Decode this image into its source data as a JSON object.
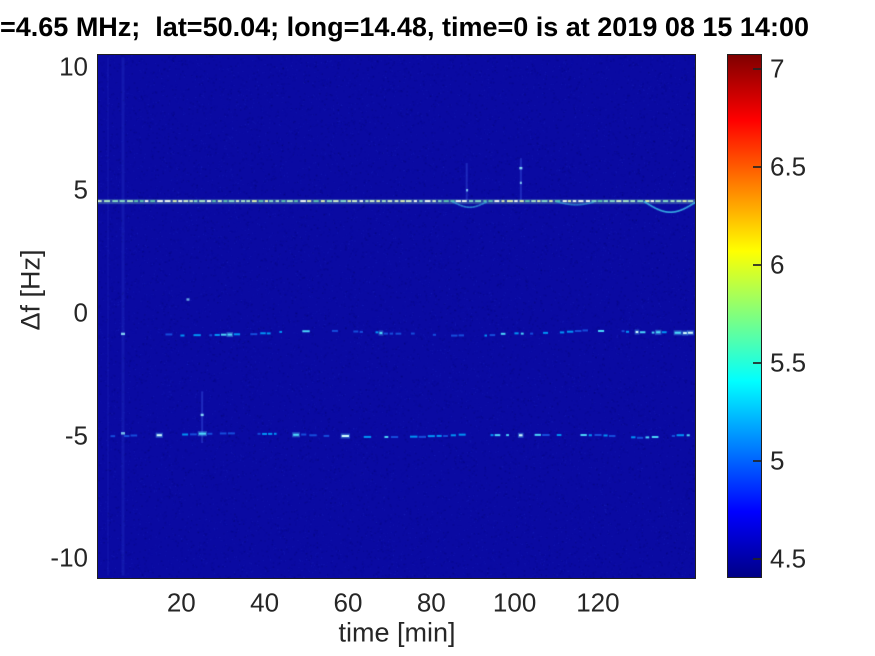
{
  "title": "=4.65 MHz;  lat=50.04; long=14.48, time=0 is at 2019 08 15 14:00",
  "chart_data": {
    "type": "heatmap",
    "subtype": "doppler-spectrogram",
    "title": "=4.65 MHz;  lat=50.04; long=14.48, time=0 is at 2019 08 15 14:00",
    "xlabel": "time [min]",
    "ylabel": "Δf [Hz]",
    "xlim": [
      0,
      143.3
    ],
    "ylim": [
      -10.8,
      10.5
    ],
    "xticks": [
      20,
      40,
      60,
      80,
      100,
      120
    ],
    "yticks": [
      10,
      5,
      0,
      -5,
      -10
    ],
    "grid": false,
    "background_value": 4.45,
    "background_color": "#0a0aa2",
    "colorbar": {
      "position": "right",
      "ticks": [
        7,
        6.5,
        6,
        5.5,
        5,
        4.5
      ],
      "clim": [
        4.41,
        7.07
      ],
      "colormap": "jet",
      "gradient_stops": [
        "#7f0000 0%",
        "#ff0000 12.5%",
        "#ffff00 37.5%",
        "#00ffff 62.5%",
        "#0000ff 87.5%",
        "#000086 100%"
      ]
    },
    "spectral_traces": [
      {
        "name": "carrier-line",
        "freq_hz": 4.55,
        "t_range_min": [
          0,
          143.3
        ],
        "intensity_range": [
          5.9,
          7.0
        ],
        "style": "bright-dashed-continuous",
        "dips": [
          {
            "t0": 85,
            "t1": 93,
            "df": -0.22,
            "alpha": 0.55
          },
          {
            "t0": 110,
            "t1": 119,
            "df": -0.12,
            "alpha": 0.45
          },
          {
            "t0": 131,
            "t1": 143.3,
            "df": -0.42,
            "alpha": 0.85
          }
        ]
      },
      {
        "name": "doppler-trace-mid",
        "freq_hz": -0.82,
        "t_range_min": [
          10,
          143.3
        ],
        "intensity_range": [
          4.8,
          5.8
        ],
        "style": "intermittent-scatter",
        "wander_hz": 0.25
      },
      {
        "name": "doppler-trace-low",
        "freq_hz": -4.95,
        "t_range_min": [
          3,
          143.3
        ],
        "intensity_range": [
          4.8,
          5.8
        ],
        "style": "intermittent-scatter",
        "wander_hz": 0.2
      }
    ],
    "vertical_streaks": [
      {
        "t": 2.4,
        "f0": 10.4,
        "f1": -10.7,
        "alpha": 0.07,
        "w": 2
      },
      {
        "t": 6.0,
        "f0": 10.4,
        "f1": -10.7,
        "alpha": 0.13,
        "w": 3
      },
      {
        "t": 25.0,
        "f0": -3.2,
        "f1": -5.3,
        "alpha": 0.3,
        "w": 2
      },
      {
        "t": 88.5,
        "f0": 6.1,
        "f1": 4.6,
        "alpha": 0.28,
        "w": 2
      },
      {
        "t": 101.5,
        "f0": 6.3,
        "f1": 4.6,
        "alpha": 0.3,
        "w": 2
      }
    ],
    "bright_spots": [
      {
        "t": 6.0,
        "f": -0.85,
        "w": 4,
        "alpha": 0.85
      },
      {
        "t": 6.0,
        "f": -4.9,
        "w": 4,
        "alpha": 0.8
      },
      {
        "t": 21.6,
        "f": 0.55,
        "w": 3,
        "alpha": 0.7
      },
      {
        "t": 25.0,
        "f": -4.15,
        "w": 3,
        "alpha": 0.9
      },
      {
        "t": 88.6,
        "f": 5.0,
        "w": 2,
        "alpha": 0.8
      },
      {
        "t": 101.5,
        "f": 5.9,
        "w": 3,
        "alpha": 0.9
      },
      {
        "t": 101.5,
        "f": 5.3,
        "w": 2,
        "alpha": 0.8
      }
    ]
  }
}
